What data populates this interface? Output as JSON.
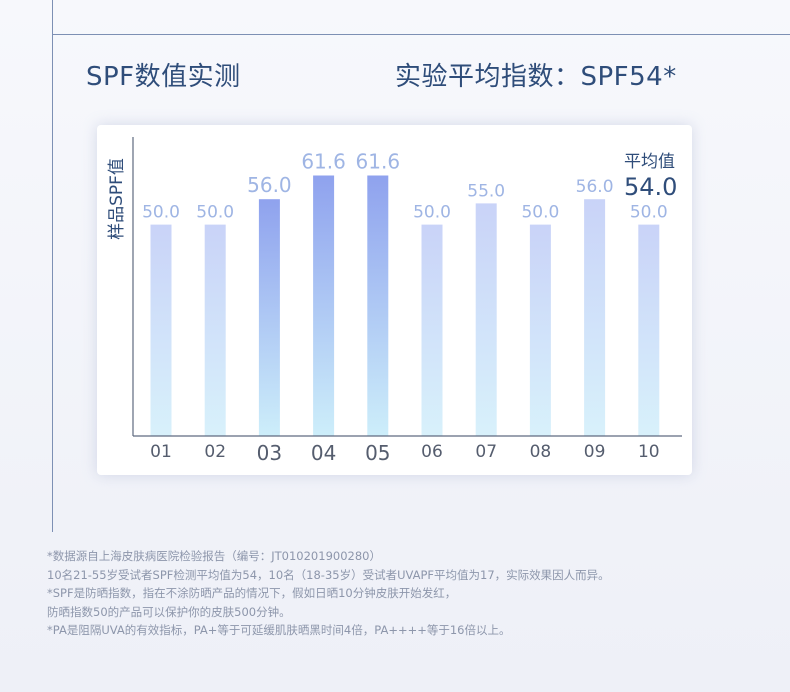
{
  "header": {
    "title": "SPF数值实测",
    "average_index": "实验平均指数：SPF54*"
  },
  "chart_data": {
    "type": "bar",
    "ylabel": "样品SPF值",
    "xlabel": "",
    "categories": [
      "01",
      "02",
      "03",
      "04",
      "05",
      "06",
      "07",
      "08",
      "09",
      "10"
    ],
    "values": [
      50.0,
      50.0,
      56.0,
      61.6,
      61.6,
      50.0,
      55.0,
      50.0,
      56.0,
      50.0
    ],
    "value_labels": [
      "50.0",
      "50.0",
      "56.0",
      "61.6",
      "61.6",
      "50.0",
      "55.0",
      "50.0",
      "56.0",
      "50.0"
    ],
    "highlighted": [
      false,
      false,
      true,
      true,
      true,
      false,
      false,
      false,
      false,
      false
    ],
    "ylim": [
      0,
      70
    ],
    "grid": false,
    "average_label": "平均值",
    "average_value": "54.0",
    "colors": {
      "normal_top": "#c9d3f8",
      "normal_bottom": "#d8f1fb",
      "highlight_top": "#8fa2ee",
      "highlight_bottom": "#cdeefa",
      "value_label": "#9fb5e4",
      "axis": "#5f6a80",
      "axis_label": "#2f4d7a",
      "tick_label": "#555d6e"
    }
  },
  "footnotes": [
    "*数据源自上海皮肤病医院检验报告（编号：JT010201900280）",
    "10名21-55岁受试者SPF检测平均值为54，10名（18-35岁）受试者UVAPF平均值为17，实际效果因人而异。",
    "*SPF是防晒指数，指在不涂防晒产品的情况下，假如日晒10分钟皮肤开始发红，",
    "防晒指数50的产品可以保护你的皮肤500分钟。",
    "*PA是阻隔UVA的有效指标，PA+等于可延缓肌肤晒黑时间4倍，PA++++等于16倍以上。"
  ]
}
